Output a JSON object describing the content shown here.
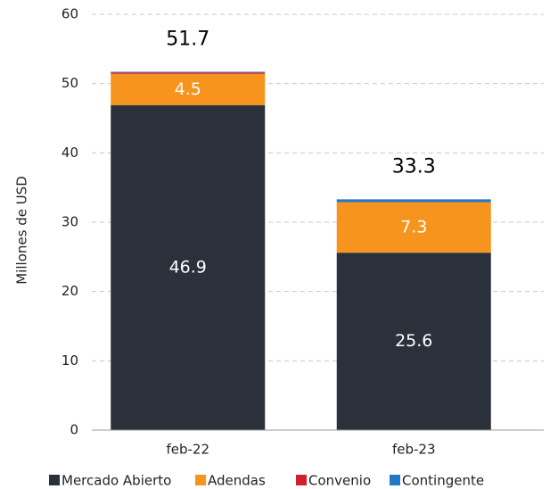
{
  "chart_data": {
    "type": "stacked_bar",
    "y_label": "Millones de USD",
    "categories": [
      "feb-22",
      "feb-23"
    ],
    "series": [
      {
        "name": "Mercado Abierto",
        "color": "#2b313b",
        "values": [
          46.9,
          25.6
        ],
        "data_labels": true
      },
      {
        "name": "Adendas",
        "color": "#f7941d",
        "values": [
          4.5,
          7.3
        ],
        "data_labels": true
      },
      {
        "name": "Convenio",
        "color": "#d0202e",
        "values": [
          0.2,
          0.0
        ],
        "data_labels": false
      },
      {
        "name": "Contingente",
        "color": "#1f78c8",
        "values": [
          0.1,
          0.4
        ],
        "data_labels": false
      }
    ],
    "totals": [
      51.7,
      33.3
    ],
    "ylim": [
      0,
      60
    ],
    "yticks": [
      0,
      10,
      20,
      30,
      40,
      50,
      60
    ],
    "grid": true
  }
}
